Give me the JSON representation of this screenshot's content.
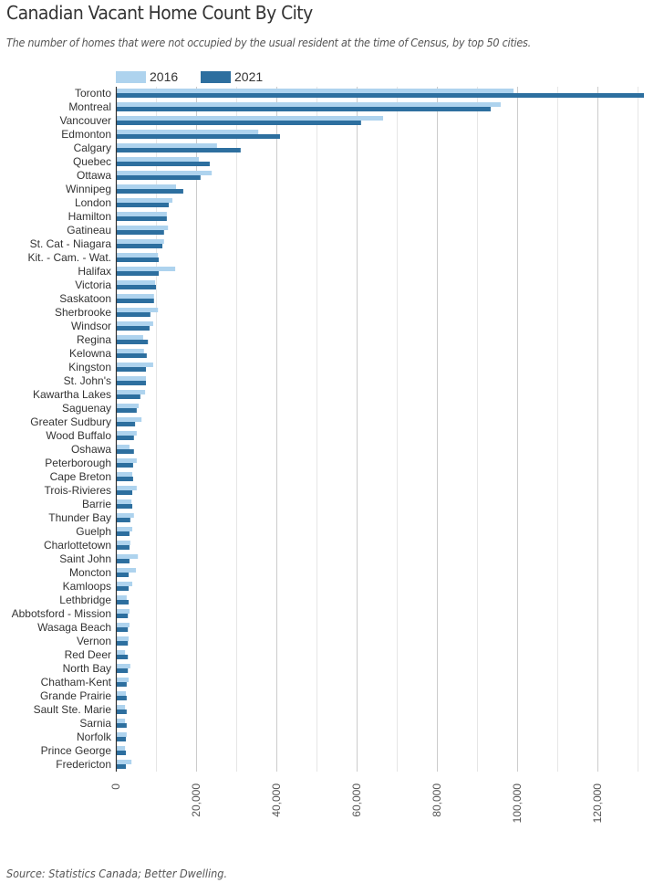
{
  "title": "Canadian Vacant Home Count By City",
  "subtitle": "The number of homes that were not occupied by the usual resident at the time of Census, by top 50 cities.",
  "source": "Source: Statistics Canada; Better Dwelling.",
  "colors": {
    "2016": "#aed3ee",
    "2021": "#2d6f9f",
    "axis": "#333333",
    "grid_major": "#cccccc",
    "grid_minor": "#e6e6e6"
  },
  "chart_data": {
    "type": "bar",
    "orientation": "horizontal",
    "title": "Canadian Vacant Home Count By City",
    "xlabel": "",
    "ylabel": "",
    "xlim": [
      0,
      132000
    ],
    "grid": true,
    "legend": "top-left",
    "x_ticks": [
      0,
      20000,
      40000,
      60000,
      80000,
      100000,
      120000
    ],
    "x_tick_labels": [
      "0",
      "20,000",
      "40,000",
      "60,000",
      "80,000",
      "100,000",
      "120,000"
    ],
    "categories": [
      "Toronto",
      "Montreal",
      "Vancouver",
      "Edmonton",
      "Calgary",
      "Quebec",
      "Ottawa",
      "Winnipeg",
      "London",
      "Hamilton",
      "Gatineau",
      "St. Cat - Niagara",
      "Kit. - Cam. - Wat.",
      "Halifax",
      "Victoria",
      "Saskatoon",
      "Sherbrooke",
      "Windsor",
      "Regina",
      "Kelowna",
      "Kingston",
      "St. John's",
      "Kawartha Lakes",
      "Saguenay",
      "Greater Sudbury",
      "Wood Buffalo",
      "Oshawa",
      "Peterborough",
      "Cape Breton",
      "Trois-Rivieres",
      "Barrie",
      "Thunder Bay",
      "Guelph",
      "Charlottetown",
      "Saint John",
      "Moncton",
      "Kamloops",
      "Lethbridge",
      "Abbotsford - Mission",
      "Wasaga Beach",
      "Vernon",
      "Red Deer",
      "North Bay",
      "Chatham-Kent",
      "Grande Prairie",
      "Sault Ste. Marie",
      "Sarnia",
      "Norfolk",
      "Prince George",
      "Fredericton"
    ],
    "series": [
      {
        "name": "2016",
        "values": [
          99100,
          95900,
          66600,
          35500,
          25200,
          20700,
          23900,
          15000,
          14100,
          12700,
          13000,
          12000,
          10500,
          14800,
          9800,
          9500,
          10500,
          9300,
          6800,
          7000,
          9300,
          7500,
          7300,
          5700,
          6400,
          5200,
          3400,
          5200,
          4100,
          5200,
          3900,
          4500,
          4100,
          3600,
          5500,
          5000,
          4100,
          2700,
          3400,
          3400,
          3200,
          2300,
          3600,
          3200,
          2500,
          2300,
          2300,
          2700,
          2300,
          3900
        ]
      },
      {
        "name": "2021",
        "values": [
          131600,
          93400,
          61100,
          40900,
          31100,
          23400,
          21100,
          16800,
          13200,
          12700,
          12000,
          11600,
          10700,
          10700,
          10000,
          9500,
          8600,
          8400,
          8000,
          7700,
          7500,
          7500,
          6100,
          5200,
          4800,
          4500,
          4500,
          4300,
          4300,
          4100,
          4100,
          3600,
          3400,
          3400,
          3400,
          3200,
          3200,
          3200,
          3000,
          3000,
          3000,
          3000,
          3000,
          2700,
          2700,
          2700,
          2700,
          2500,
          2500,
          2500
        ]
      }
    ]
  }
}
